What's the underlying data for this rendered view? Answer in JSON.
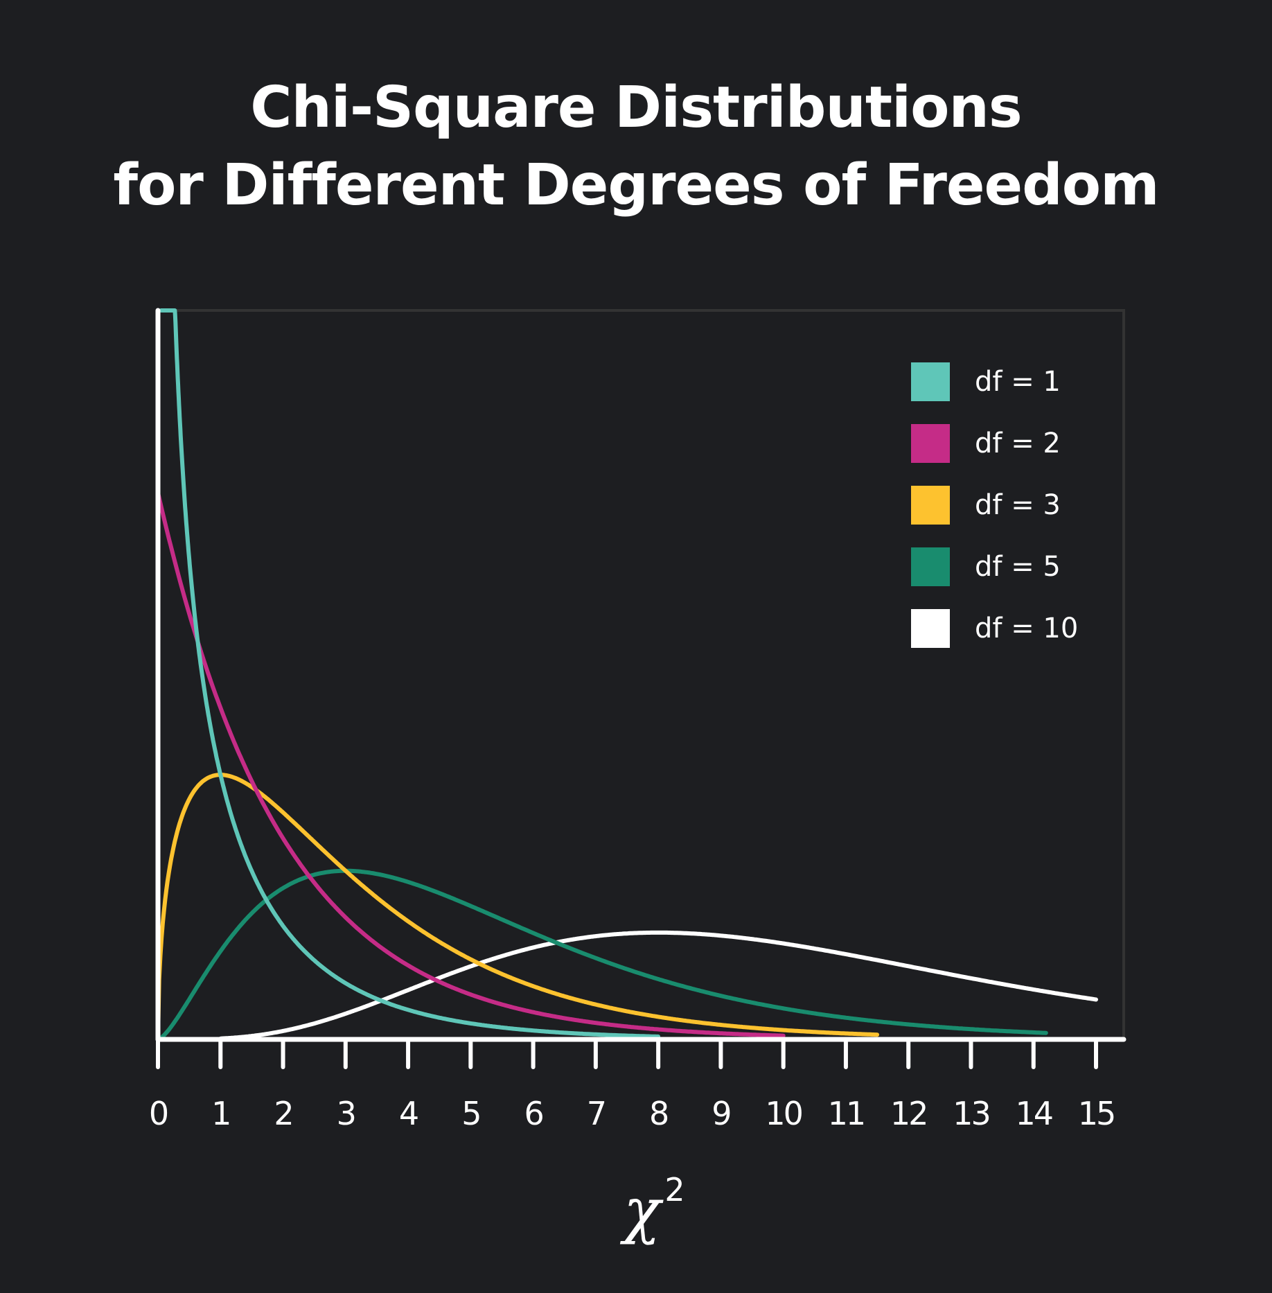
{
  "title": {
    "line1": "Chi-Square Distributions",
    "line2": "for Different Degrees of Freedom"
  },
  "colors": {
    "background": "#1d1e21",
    "axis": "#ffffff",
    "frame": "#333333",
    "df1": "#5fc6b8",
    "df2": "#c52c87",
    "df3": "#fdc22f",
    "df5": "#198c6e",
    "df10": "#ffffff"
  },
  "legend": [
    {
      "label": "df = 1",
      "color": "#5fc6b8"
    },
    {
      "label": "df = 2",
      "color": "#c52c87"
    },
    {
      "label": "df = 3",
      "color": "#fdc22f"
    },
    {
      "label": "df = 5",
      "color": "#198c6e"
    },
    {
      "label": "df = 10",
      "color": "#ffffff"
    }
  ],
  "x_ticks": [
    "0",
    "1",
    "2",
    "3",
    "4",
    "5",
    "6",
    "7",
    "8",
    "9",
    "10",
    "11",
    "12",
    "13",
    "14",
    "15"
  ],
  "x_axis_label": "χ",
  "x_axis_label_sup": "2",
  "chart_data": {
    "type": "line",
    "title": "Chi-Square Distributions for Different Degrees of Freedom",
    "xlabel": "χ²",
    "ylabel": "",
    "xlim": [
      0,
      15
    ],
    "x_ticks": [
      0,
      1,
      2,
      3,
      4,
      5,
      6,
      7,
      8,
      9,
      10,
      11,
      12,
      13,
      14,
      15
    ],
    "y_ticks": [],
    "grid": false,
    "legend_position": "upper right",
    "series": [
      {
        "name": "df = 1",
        "df": 1,
        "color": "#5fc6b8",
        "x_range": [
          0.05,
          8
        ],
        "x": [
          0.1,
          0.25,
          0.5,
          1,
          1.5,
          2,
          3,
          4,
          5,
          6,
          7,
          8
        ],
        "y": [
          1.2,
          0.704,
          0.439,
          0.242,
          0.154,
          0.104,
          0.051,
          0.027,
          0.015,
          0.008,
          0.005,
          0.003
        ]
      },
      {
        "name": "df = 2",
        "df": 2,
        "color": "#c52c87",
        "x_range": [
          0,
          10
        ],
        "x": [
          0,
          1,
          2,
          3,
          4,
          5,
          6,
          7,
          8,
          9,
          10
        ],
        "y": [
          0.5,
          0.303,
          0.184,
          0.112,
          0.068,
          0.041,
          0.025,
          0.015,
          0.009,
          0.006,
          0.003
        ]
      },
      {
        "name": "df = 3",
        "df": 3,
        "color": "#fdc22f",
        "x_range": [
          0,
          11.5
        ],
        "x": [
          0,
          0.5,
          1,
          2,
          3,
          4,
          5,
          6,
          7,
          8,
          9,
          10,
          11
        ],
        "y": [
          0,
          0.22,
          0.242,
          0.208,
          0.154,
          0.108,
          0.073,
          0.048,
          0.031,
          0.02,
          0.013,
          0.008,
          0.005
        ]
      },
      {
        "name": "df = 5",
        "df": 5,
        "color": "#198c6e",
        "x_range": [
          0,
          14.2
        ],
        "x": [
          0,
          1,
          2,
          3,
          4,
          5,
          6,
          7,
          8,
          9,
          10,
          11,
          12,
          13,
          14
        ],
        "y": [
          0,
          0.081,
          0.138,
          0.154,
          0.144,
          0.122,
          0.096,
          0.072,
          0.051,
          0.036,
          0.024,
          0.016,
          0.01,
          0.007,
          0.004
        ]
      },
      {
        "name": "df = 10",
        "df": 10,
        "color": "#ffffff",
        "x_range": [
          1,
          15
        ],
        "x": [
          1,
          2,
          3,
          4,
          5,
          6,
          7,
          8,
          9,
          10,
          11,
          12,
          13,
          14,
          15
        ],
        "y": [
          0.001,
          0.008,
          0.026,
          0.053,
          0.076,
          0.092,
          0.099,
          0.098,
          0.091,
          0.078,
          0.065,
          0.052,
          0.04,
          0.03,
          0.022
        ]
      }
    ]
  }
}
